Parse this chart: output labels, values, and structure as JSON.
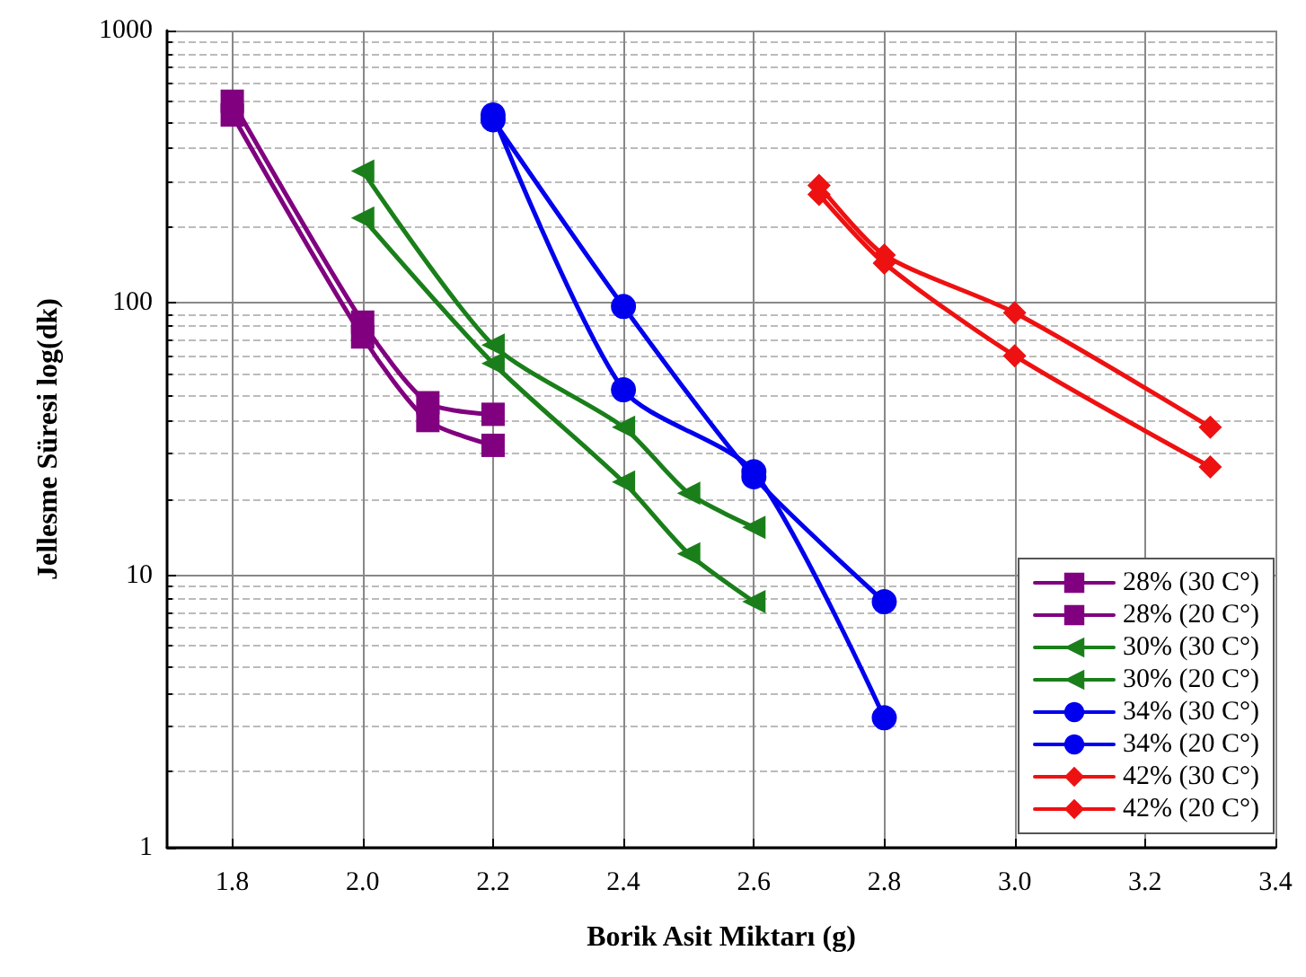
{
  "chart_data": {
    "type": "line",
    "xlabel": "Borik Asit Miktarı (g)",
    "ylabel": "Jellesme Süresi log(dk)",
    "log": "y",
    "grid": true,
    "legend": "bottom right",
    "line_style": "solid",
    "xlim": [
      1.7,
      3.4
    ],
    "xticks": [
      1.8,
      {
        "value": 2,
        "label": "2.0"
      },
      2.2,
      2.4,
      2.6,
      2.8,
      {
        "value": 3,
        "label": "3.0"
      },
      3.2,
      3.4
    ],
    "ylim": [
      1,
      1000
    ],
    "yticks": [
      1,
      10,
      100,
      1000
    ],
    "series": [
      {
        "name": "28% (30 C°)",
        "color": "#800080",
        "marker": "square",
        "x": [
          1.8,
          2.0,
          2.1,
          2.2
        ],
        "values": [
          490,
          75,
          37,
          30
        ]
      },
      {
        "name": "28% (20 C°)",
        "color": "#800080",
        "marker": "square",
        "x": [
          1.8,
          2.0,
          2.1,
          2.2
        ],
        "values": [
          550,
          85,
          43,
          39
        ]
      },
      {
        "name": "30% (30 C°)",
        "color": "#1a7f1a",
        "marker": "triangle",
        "x": [
          2.0,
          2.2,
          2.4,
          2.5,
          2.6
        ],
        "values": [
          205,
          60,
          22,
          12,
          8
        ]
      },
      {
        "name": "30% (20 C°)",
        "color": "#1a7f1a",
        "marker": "triangle",
        "x": [
          2.0,
          2.2,
          2.4,
          2.5,
          2.6
        ],
        "values": [
          305,
          70,
          35,
          20,
          15
        ]
      },
      {
        "name": "34% (30 C°)",
        "color": "#0000ee",
        "marker": "circle",
        "x": [
          2.2,
          2.4,
          2.6,
          2.8
        ],
        "values": [
          490,
          48,
          24,
          3
        ]
      },
      {
        "name": "34% (20 C°)",
        "color": "#0000ee",
        "marker": "circle",
        "x": [
          2.2,
          2.4,
          2.6,
          2.8
        ],
        "values": [
          470,
          97,
          23,
          8
        ]
      },
      {
        "name": "42% (30 C°)",
        "color": "#ee1111",
        "marker": "diamond",
        "x": [
          2.7,
          2.8,
          3.0,
          3.3
        ],
        "values": [
          250,
          140,
          64,
          25
        ]
      },
      {
        "name": "42% (20 C°)",
        "color": "#ee1111",
        "marker": "diamond",
        "x": [
          2.7,
          2.8,
          3.0,
          3.3
        ],
        "values": [
          270,
          150,
          92,
          35
        ]
      }
    ]
  }
}
